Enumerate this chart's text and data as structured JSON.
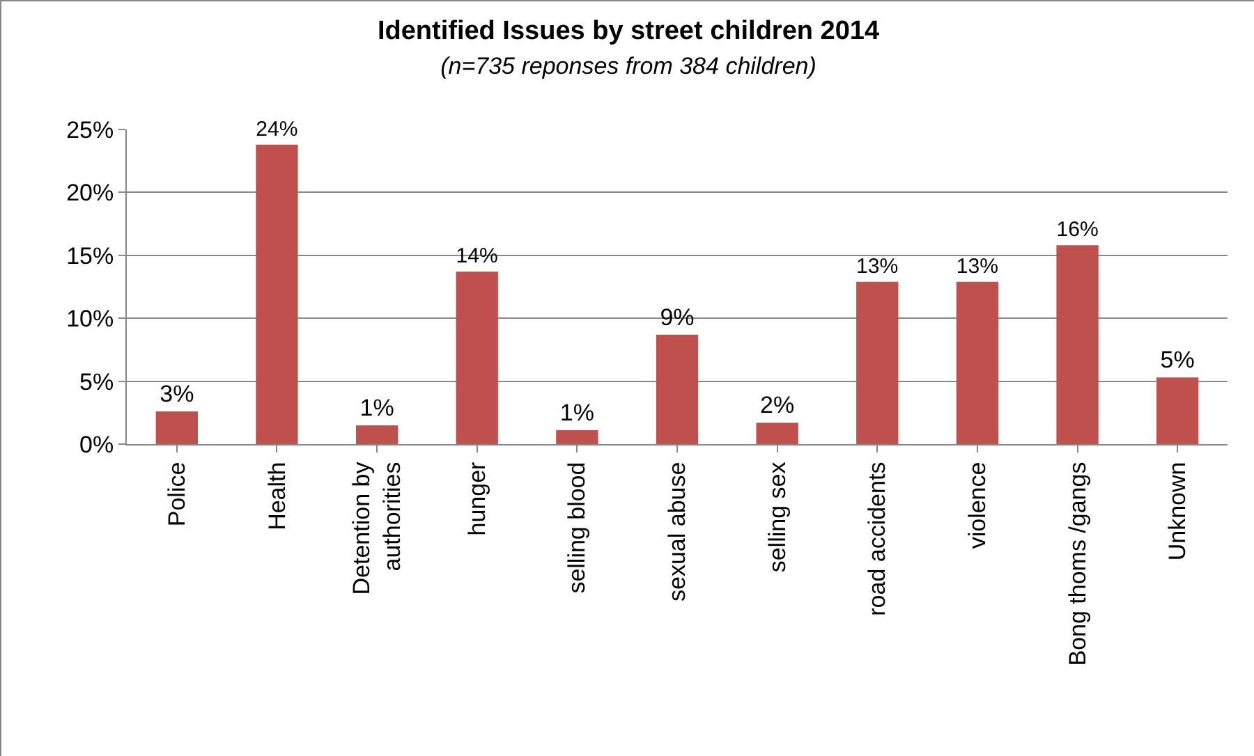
{
  "chart_data": {
    "type": "bar",
    "title": "Identified Issues by street children 2014",
    "subtitle": "(n=735 reponses from 384 children)",
    "categories": [
      "Police",
      "Health",
      "Detention by authorities",
      "hunger",
      "selling blood",
      "sexual abuse",
      "selling sex",
      "road accidents",
      "violence",
      "Bong thoms /gangs",
      "Unknown"
    ],
    "values": [
      2.6,
      23.8,
      1.5,
      13.7,
      1.1,
      8.7,
      1.7,
      12.9,
      12.9,
      15.8,
      5.3
    ],
    "value_labels": [
      "3%",
      "24%",
      "1%",
      "14%",
      "1%",
      "9%",
      "2%",
      "13%",
      "13%",
      "16%",
      "5%"
    ],
    "color": "#c0504d",
    "ylim": [
      0,
      25
    ],
    "yticks": [
      {
        "value": 0,
        "label": "0%"
      },
      {
        "value": 5,
        "label": "5%"
      },
      {
        "value": 10,
        "label": "10%"
      },
      {
        "value": 15,
        "label": "15%"
      },
      {
        "value": 20,
        "label": "20%"
      },
      {
        "value": 25,
        "label": "25%"
      }
    ],
    "grid": "y"
  }
}
